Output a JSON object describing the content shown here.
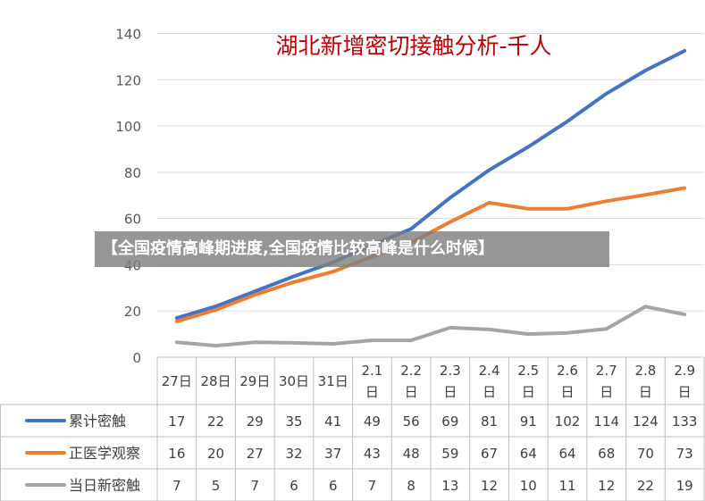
{
  "banner": {
    "text": "【全国疫情高峰期进度,全国疫情比较高峰是什么时候】"
  },
  "chart_data": {
    "type": "line",
    "title": "湖北新增密切接触分析-千人",
    "xlabel": "",
    "ylabel": "",
    "ylim": [
      0,
      140
    ],
    "yticks": [
      0,
      20,
      40,
      60,
      80,
      100,
      120,
      140
    ],
    "grid": true,
    "legend": "table-left",
    "categories": [
      "27日",
      "28日",
      "29日",
      "30日",
      "31日",
      "2.1日",
      "2.2日",
      "2.3日",
      "2.4日",
      "2.5日",
      "2.6日",
      "2.7日",
      "2.8日",
      "2.9日"
    ],
    "category_lines": [
      [
        "27日"
      ],
      [
        "28日"
      ],
      [
        "29日"
      ],
      [
        "30日"
      ],
      [
        "31日"
      ],
      [
        "2.1",
        "日"
      ],
      [
        "2.2",
        "日"
      ],
      [
        "2.3",
        "日"
      ],
      [
        "2.4",
        "日"
      ],
      [
        "2.5",
        "日"
      ],
      [
        "2.6",
        "日"
      ],
      [
        "2.7",
        "日"
      ],
      [
        "2.8",
        "日"
      ],
      [
        "2.9",
        "日"
      ]
    ],
    "series": [
      {
        "name": "累计密触",
        "color": "#4472C4",
        "values": [
          17,
          22,
          29,
          35,
          41,
          49,
          56,
          69,
          81,
          91,
          102,
          114,
          124,
          133
        ],
        "plot": [
          17,
          22,
          28.5,
          35,
          41,
          48.5,
          55.5,
          69,
          81,
          91,
          102,
          114,
          124,
          132.5
        ]
      },
      {
        "name": "正医学观察",
        "color": "#ED7D31",
        "values": [
          16,
          20,
          27,
          32,
          37,
          43,
          48,
          59,
          67,
          64,
          64,
          68,
          70,
          73
        ],
        "plot": [
          15.5,
          20.5,
          27,
          32.5,
          37,
          43.5,
          49.5,
          58.5,
          66.8,
          64.2,
          64.2,
          67.5,
          70.2,
          73.2
        ]
      },
      {
        "name": "当日新密触",
        "color": "#A5A5A5",
        "values": [
          7,
          5,
          7,
          6,
          6,
          7,
          8,
          13,
          12,
          10,
          11,
          12,
          22,
          19
        ],
        "plot": [
          6.5,
          5,
          6.5,
          6.2,
          5.8,
          7.3,
          7.3,
          12.8,
          12,
          10,
          10.5,
          12.3,
          21.9,
          18.5
        ]
      }
    ]
  }
}
